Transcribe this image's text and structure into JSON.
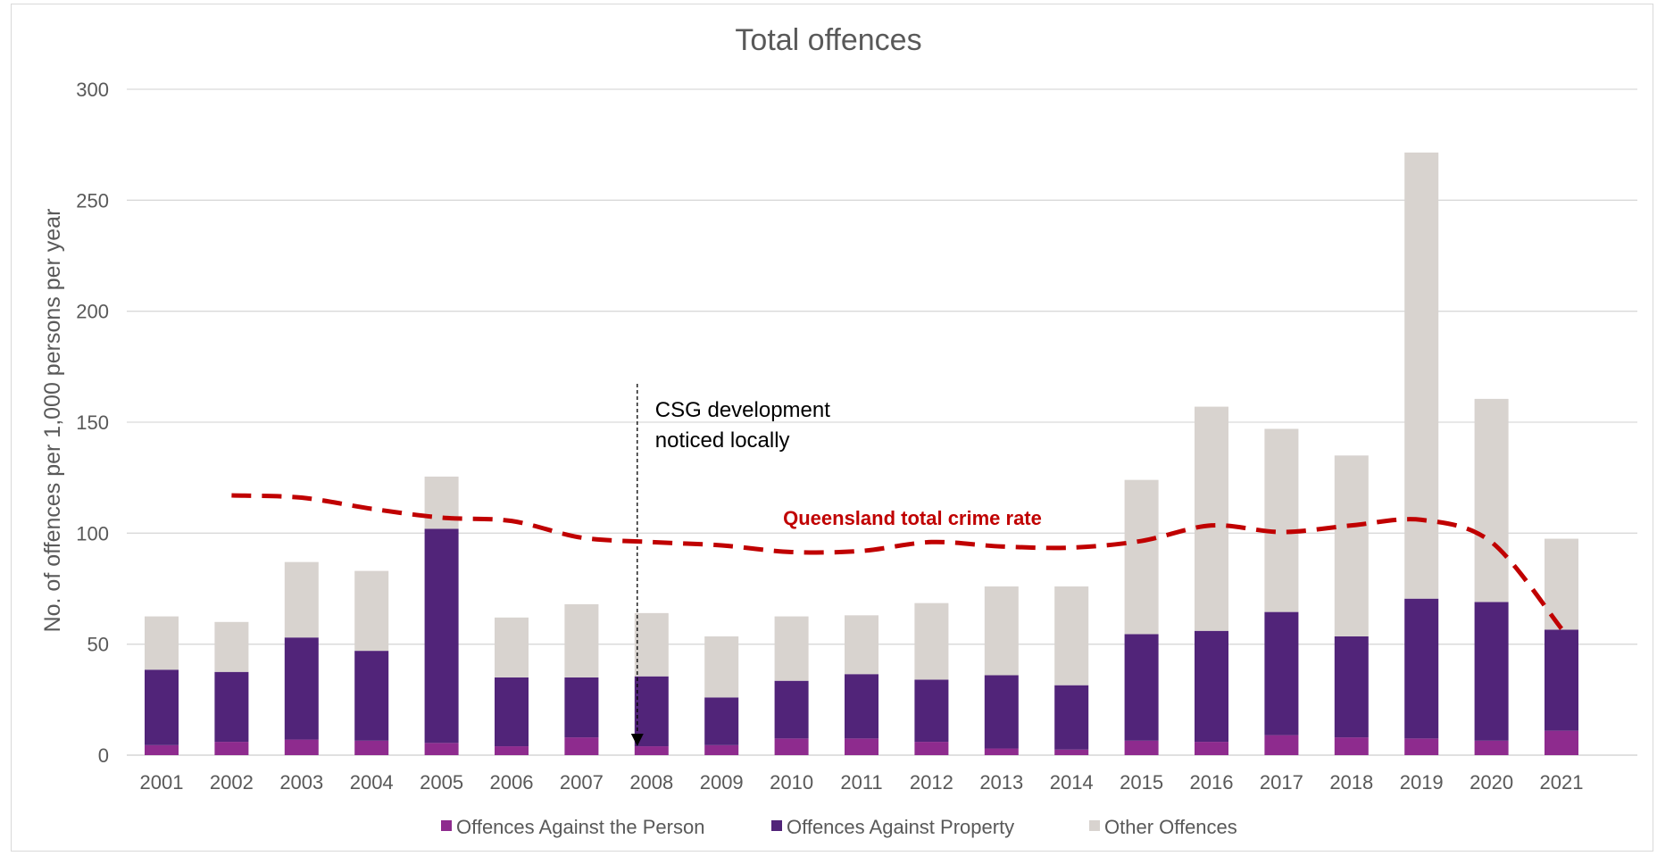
{
  "chart_data": {
    "type": "bar",
    "stacked": true,
    "title": "Total offences",
    "ylabel": "No. of offences per 1,000 persons per year",
    "xlabel": "",
    "ylim": [
      0,
      300
    ],
    "yticks": [
      0,
      50,
      100,
      150,
      200,
      250,
      300
    ],
    "grid": true,
    "legend_position": "bottom",
    "categories": [
      "2001",
      "2002",
      "2003",
      "2004",
      "2005",
      "2006",
      "2007",
      "2008",
      "2009",
      "2010",
      "2011",
      "2012",
      "2013",
      "2014",
      "2015",
      "2016",
      "2017",
      "2018",
      "2019",
      "2020",
      "2021"
    ],
    "series": [
      {
        "name": "Offences Against the Person",
        "color": "#8e2b8e",
        "values": [
          4.5,
          6,
          7,
          6.5,
          5.5,
          4,
          8,
          4,
          4.5,
          7.5,
          7.5,
          6,
          3,
          2.5,
          6.5,
          6,
          9,
          8,
          7.5,
          6.5,
          11
        ]
      },
      {
        "name": "Offences Against Property",
        "color": "#512479",
        "values": [
          34,
          31.5,
          46,
          40.5,
          96.5,
          31,
          27,
          31.5,
          21.5,
          26,
          29,
          28,
          33,
          29,
          48,
          50,
          55.5,
          45.5,
          63,
          62.5,
          45.5
        ]
      },
      {
        "name": "Other Offences",
        "color": "#d8d3cf",
        "values": [
          24,
          22.5,
          34,
          36,
          23.5,
          27,
          33,
          28.5,
          27.5,
          29,
          26.5,
          34.5,
          40,
          44.5,
          69.5,
          101,
          82.5,
          81.5,
          201,
          91.5,
          41
        ]
      }
    ],
    "overlay_line": {
      "name": "Queensland total crime rate",
      "style": "dashed",
      "color": "#c00000",
      "x": [
        "2002",
        "2003",
        "2004",
        "2005",
        "2006",
        "2007",
        "2008",
        "2009",
        "2010",
        "2011",
        "2012",
        "2013",
        "2014",
        "2015",
        "2016",
        "2017",
        "2018",
        "2019",
        "2020",
        "2021"
      ],
      "values": [
        117,
        116,
        111,
        107,
        105.5,
        98,
        96,
        94.5,
        91.5,
        92,
        96,
        94,
        93.5,
        96.5,
        103.5,
        100.5,
        103.5,
        106,
        96,
        57
      ]
    },
    "annotations": [
      {
        "text_lines": [
          "CSG development",
          "noticed locally"
        ],
        "category": "2008",
        "arrow": "dashed-down"
      },
      {
        "text": "Queensland total crime rate",
        "color": "#c00000"
      }
    ]
  }
}
